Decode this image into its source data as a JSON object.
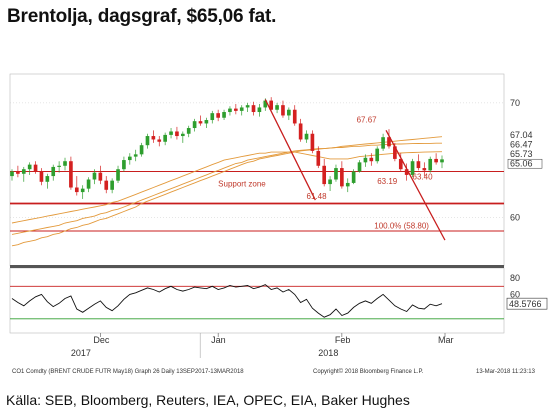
{
  "title": "Brentolja, dagsgraf, $65,06 fat.",
  "source": "Källa: SEB, Bloomberg, Reuters, IEA, OPEC, EIA, Baker Hughes",
  "footer": {
    "left": "CO1 Comdty (BRENT CRUDE FUTR May18) Graph 26 Daily 13SEP2017-13MAR2018",
    "middle": "Copyright© 2018 Bloomberg Finance L.P.",
    "right": "13-Mar-2018 11:23:13"
  },
  "colors": {
    "up": "#2e9e2e",
    "down": "#d42020",
    "level": "#c81e1e",
    "ma": "#e39a3c",
    "grid": "#cccccc"
  },
  "chart_data": [
    {
      "type": "candlestick",
      "ylim": [
        56,
        72
      ],
      "y_ticks": [
        60,
        70
      ],
      "x_tick_labels": [
        "Dec",
        "Jan",
        "Feb",
        "Mar"
      ],
      "x_year_labels": [
        "2017",
        "2018"
      ],
      "annotations": [
        "Support zone",
        "67.67",
        "63.19",
        "63.40",
        "61.48",
        "100.0% (58.80)"
      ],
      "right_labels": [
        {
          "text": "67.04",
          "color": "#e39a3c"
        },
        {
          "text": "66.47",
          "color": "#e39a3c"
        },
        {
          "text": "65.73",
          "color": "#e39a3c"
        },
        {
          "text": "65.06",
          "color": "#d42020"
        }
      ],
      "horizontal_levels": [
        64.0,
        61.2,
        58.8
      ],
      "ohlc": [
        [
          63.6,
          64.2,
          63.2,
          64.0
        ],
        [
          64.0,
          64.5,
          63.5,
          63.8
        ],
        [
          63.8,
          64.4,
          63.1,
          64.2
        ],
        [
          64.2,
          64.8,
          63.7,
          64.6
        ],
        [
          64.6,
          64.9,
          63.8,
          64.0
        ],
        [
          64.0,
          64.3,
          62.8,
          63.1
        ],
        [
          63.1,
          63.8,
          62.5,
          63.6
        ],
        [
          63.6,
          64.6,
          63.2,
          64.4
        ],
        [
          64.4,
          64.9,
          63.9,
          64.5
        ],
        [
          64.5,
          65.2,
          64.1,
          64.9
        ],
        [
          64.9,
          65.3,
          62.4,
          62.6
        ],
        [
          62.6,
          63.6,
          61.9,
          62.2
        ],
        [
          62.2,
          62.8,
          61.6,
          62.5
        ],
        [
          62.5,
          63.5,
          62.2,
          63.3
        ],
        [
          63.3,
          64.2,
          62.9,
          63.9
        ],
        [
          63.9,
          64.5,
          62.9,
          63.2
        ],
        [
          63.2,
          63.6,
          62.1,
          62.4
        ],
        [
          62.4,
          63.4,
          62.1,
          63.2
        ],
        [
          63.2,
          64.5,
          63.0,
          64.2
        ],
        [
          64.2,
          65.3,
          64.0,
          65.0
        ],
        [
          65.0,
          65.6,
          64.6,
          65.3
        ],
        [
          65.3,
          65.9,
          64.9,
          65.5
        ],
        [
          65.5,
          66.5,
          65.3,
          66.3
        ],
        [
          66.3,
          67.3,
          66.0,
          67.1
        ],
        [
          67.1,
          67.6,
          66.5,
          66.8
        ],
        [
          66.8,
          67.1,
          66.2,
          66.6
        ],
        [
          66.6,
          67.4,
          66.3,
          67.2
        ],
        [
          67.2,
          67.8,
          66.9,
          67.5
        ],
        [
          67.5,
          67.9,
          66.8,
          67.1
        ],
        [
          67.1,
          67.5,
          66.5,
          67.3
        ],
        [
          67.3,
          68.0,
          67.0,
          67.8
        ],
        [
          67.8,
          68.6,
          67.5,
          68.4
        ],
        [
          68.4,
          68.9,
          68.0,
          68.2
        ],
        [
          68.2,
          68.7,
          67.8,
          68.5
        ],
        [
          68.5,
          69.3,
          68.2,
          69.1
        ],
        [
          69.1,
          69.4,
          68.4,
          68.7
        ],
        [
          68.7,
          69.4,
          68.5,
          69.2
        ],
        [
          69.2,
          69.7,
          68.9,
          69.5
        ],
        [
          69.5,
          69.9,
          69.0,
          69.3
        ],
        [
          69.3,
          69.8,
          68.9,
          69.6
        ],
        [
          69.6,
          70.0,
          69.2,
          69.8
        ],
        [
          69.8,
          70.1,
          68.9,
          69.2
        ],
        [
          69.2,
          69.9,
          68.8,
          69.6
        ],
        [
          69.6,
          70.4,
          69.3,
          70.2
        ],
        [
          70.2,
          70.5,
          69.3,
          69.4
        ],
        [
          69.4,
          70.0,
          69.1,
          69.8
        ],
        [
          69.8,
          70.2,
          68.7,
          68.9
        ],
        [
          68.9,
          69.6,
          68.5,
          69.4
        ],
        [
          69.4,
          69.8,
          68.0,
          68.2
        ],
        [
          68.2,
          68.6,
          66.6,
          66.8
        ],
        [
          66.8,
          67.6,
          66.5,
          67.3
        ],
        [
          67.3,
          67.6,
          65.6,
          65.8
        ],
        [
          65.8,
          66.2,
          64.3,
          64.5
        ],
        [
          64.5,
          65.1,
          62.7,
          62.9
        ],
        [
          62.9,
          63.6,
          62.3,
          63.3
        ],
        [
          63.3,
          64.6,
          63.1,
          64.3
        ],
        [
          64.3,
          64.9,
          62.5,
          62.7
        ],
        [
          62.7,
          63.4,
          62.2,
          63.0
        ],
        [
          63.0,
          64.2,
          62.9,
          64.0
        ],
        [
          64.0,
          65.0,
          63.9,
          64.8
        ],
        [
          64.8,
          65.5,
          64.4,
          65.2
        ],
        [
          65.2,
          65.6,
          64.5,
          64.9
        ],
        [
          64.9,
          66.2,
          64.7,
          66.0
        ],
        [
          66.0,
          67.3,
          65.8,
          67.0
        ],
        [
          67.0,
          67.7,
          66.0,
          66.2
        ],
        [
          66.2,
          66.5,
          64.9,
          65.1
        ],
        [
          65.1,
          65.6,
          64.0,
          64.2
        ],
        [
          64.2,
          64.7,
          63.2,
          63.7
        ],
        [
          63.7,
          65.1,
          63.5,
          64.9
        ],
        [
          64.9,
          65.5,
          64.1,
          64.3
        ],
        [
          64.3,
          64.8,
          63.6,
          64.1
        ],
        [
          64.1,
          65.3,
          63.9,
          65.1
        ],
        [
          65.1,
          65.6,
          64.6,
          64.8
        ],
        [
          64.8,
          65.4,
          64.3,
          65.06
        ]
      ],
      "ma_lines": [
        {
          "name": "MA1",
          "color": "#e39a3c",
          "values": [
            57.5,
            57.6,
            57.8,
            57.9,
            58.0,
            58.2,
            58.3,
            58.5,
            58.6,
            58.8,
            59.0,
            59.1,
            59.3,
            59.4,
            59.6,
            59.8,
            59.9,
            60.1,
            60.3,
            60.5,
            60.7,
            60.9,
            61.2,
            61.4,
            61.6,
            61.8,
            62.0,
            62.2,
            62.4,
            62.6,
            62.8,
            63.0,
            63.2,
            63.4,
            63.6,
            63.8,
            64.0,
            64.2,
            64.4,
            64.6,
            64.8,
            64.9,
            65.1,
            65.2,
            65.3,
            65.4,
            65.5,
            65.6,
            65.7,
            65.8,
            65.85,
            65.9,
            65.95,
            66.0,
            66.05,
            66.1,
            66.2,
            66.25,
            66.3,
            66.35,
            66.4,
            66.45,
            66.5,
            66.55,
            66.6,
            66.65,
            66.7,
            66.75,
            66.8,
            66.85,
            66.9,
            66.95,
            67.0,
            67.04
          ]
        },
        {
          "name": "MA2",
          "color": "#e39a3c",
          "values": [
            58.5,
            58.6,
            58.7,
            58.8,
            58.9,
            59.0,
            59.1,
            59.2,
            59.3,
            59.5,
            59.6,
            59.7,
            59.9,
            60.0,
            60.1,
            60.3,
            60.4,
            60.6,
            60.7,
            60.9,
            61.1,
            61.3,
            61.5,
            61.7,
            61.9,
            62.1,
            62.3,
            62.5,
            62.7,
            62.9,
            63.1,
            63.3,
            63.5,
            63.7,
            63.9,
            64.1,
            64.3,
            64.5,
            64.7,
            64.8,
            65.0,
            65.1,
            65.2,
            65.3,
            65.4,
            65.5,
            65.6,
            65.7,
            65.8,
            65.85,
            65.9,
            65.95,
            66.0,
            66.0,
            66.05,
            66.1,
            66.1,
            66.15,
            66.2,
            66.2,
            66.25,
            66.3,
            66.3,
            66.35,
            66.35,
            66.4,
            66.4,
            66.42,
            66.44,
            66.45,
            66.46,
            66.46,
            66.47,
            66.47
          ]
        },
        {
          "name": "MA3",
          "color": "#e39a3c",
          "values": [
            59.5,
            59.6,
            59.7,
            59.8,
            59.9,
            60.0,
            60.1,
            60.2,
            60.3,
            60.4,
            60.5,
            60.6,
            60.7,
            60.8,
            60.9,
            61.0,
            61.1,
            61.3,
            61.4,
            61.6,
            61.8,
            62.0,
            62.2,
            62.4,
            62.6,
            62.8,
            63.0,
            63.2,
            63.4,
            63.6,
            63.8,
            64.0,
            64.2,
            64.4,
            64.6,
            64.8,
            65.0,
            65.1,
            65.2,
            65.3,
            65.4,
            65.5,
            65.6,
            65.6,
            65.7,
            65.7,
            65.7,
            65.7,
            65.7,
            65.6,
            65.5,
            65.4,
            65.3,
            65.2,
            65.1,
            65.1,
            65.1,
            65.1,
            65.2,
            65.3,
            65.35,
            65.4,
            65.45,
            65.5,
            65.55,
            65.6,
            65.62,
            65.64,
            65.66,
            65.68,
            65.7,
            65.71,
            65.72,
            65.73
          ]
        }
      ]
    },
    {
      "type": "line",
      "ylim": [
        15,
        90
      ],
      "y_ticks": [
        80,
        60
      ],
      "levels": [
        {
          "value": 70,
          "color": "#c81e1e"
        },
        {
          "value": 30,
          "color": "#2e9e2e"
        }
      ],
      "last_value_label": "48.5766",
      "series": [
        {
          "values": [
            55,
            50,
            46,
            52,
            57,
            60,
            51,
            45,
            49,
            55,
            58,
            42,
            38,
            43,
            48,
            52,
            44,
            40,
            46,
            54,
            60,
            62,
            65,
            68,
            66,
            63,
            67,
            70,
            66,
            64,
            66,
            69,
            68,
            67,
            70,
            66,
            68,
            71,
            69,
            70,
            71,
            67,
            69,
            72,
            66,
            68,
            63,
            66,
            60,
            50,
            54,
            43,
            37,
            32,
            35,
            42,
            34,
            37,
            44,
            49,
            52,
            49,
            55,
            60,
            53,
            46,
            42,
            39,
            47,
            43,
            42,
            48,
            46,
            48.6
          ]
        }
      ]
    }
  ]
}
